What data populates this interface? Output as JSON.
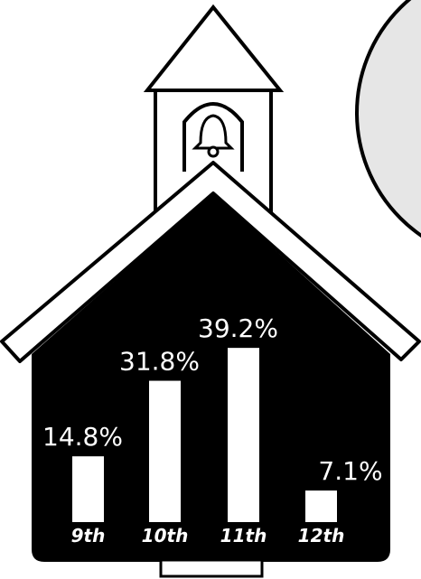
{
  "chart_data": {
    "type": "bar",
    "categories": [
      "9th",
      "10th",
      "11th",
      "12th"
    ],
    "values": [
      14.8,
      31.8,
      39.2,
      7.1
    ],
    "value_labels": [
      "14.8%",
      "31.8%",
      "39.2%",
      "7.1%"
    ],
    "color": "#ffffff"
  }
}
